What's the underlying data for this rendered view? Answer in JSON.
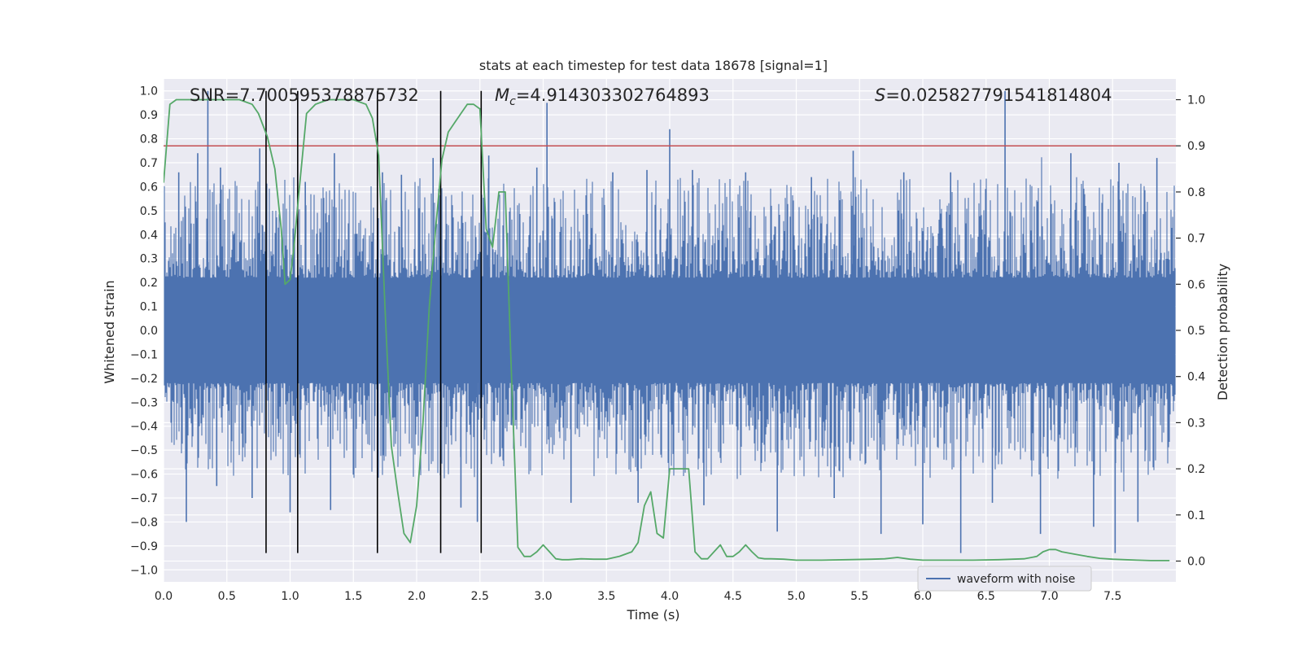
{
  "chart_data": {
    "type": "line",
    "title": "stats at each timestep for test data 18678 [signal=1]",
    "xlabel": "Time (s)",
    "ylabel": "Whitened strain",
    "y2label": "Detection probability",
    "xlim": [
      0.0,
      8.0
    ],
    "ylim": [
      -1.05,
      1.05
    ],
    "y2lim": [
      -0.045,
      1.045
    ],
    "xticks": [
      "0.0",
      "0.5",
      "1.0",
      "1.5",
      "2.0",
      "2.5",
      "3.0",
      "3.5",
      "4.0",
      "4.5",
      "5.0",
      "5.5",
      "6.0",
      "6.5",
      "7.0",
      "7.5"
    ],
    "yticks": [
      "1.0",
      "0.9",
      "0.8",
      "0.7",
      "0.6",
      "0.5",
      "0.4",
      "0.3",
      "0.2",
      "0.1",
      "0.0",
      "-0.1",
      "-0.2",
      "-0.3",
      "-0.4",
      "-0.5",
      "-0.6",
      "-0.7",
      "-0.8",
      "-0.9",
      "-1.0"
    ],
    "y2ticks": [
      "1.0",
      "0.9",
      "0.8",
      "0.7",
      "0.6",
      "0.5",
      "0.4",
      "0.3",
      "0.2",
      "0.1",
      "0.0"
    ],
    "grid": true,
    "legend_position": "lower-right",
    "annotations": {
      "snr": "SNR=7.700595378875732",
      "mc_symbol": "M",
      "mc_sub": "c",
      "mc_value": "=4.914303302764893",
      "s_symbol": "S",
      "s_value": "=0.025827791541814804"
    },
    "series": [
      {
        "name": "waveform with noise",
        "axis": "left",
        "color": "#4c72b0",
        "spikes_up": [
          [
            0.35,
            1.0
          ],
          [
            6.65,
            1.0
          ],
          [
            3.03,
            0.95
          ],
          [
            4.0,
            0.84
          ],
          [
            1.73,
            0.66
          ],
          [
            0.27,
            0.74
          ],
          [
            1.35,
            0.74
          ],
          [
            5.45,
            0.75
          ],
          [
            7.17,
            0.74
          ],
          [
            2.57,
            0.73
          ],
          [
            0.76,
            0.76
          ],
          [
            0.12,
            0.66
          ],
          [
            0.45,
            0.68
          ],
          [
            1.12,
            0.62
          ],
          [
            1.88,
            0.65
          ],
          [
            2.13,
            0.72
          ],
          [
            2.95,
            0.68
          ],
          [
            3.55,
            0.66
          ],
          [
            3.82,
            0.67
          ],
          [
            4.18,
            0.67
          ],
          [
            4.6,
            0.66
          ],
          [
            5.12,
            0.64
          ],
          [
            5.85,
            0.66
          ],
          [
            6.22,
            0.66
          ],
          [
            7.55,
            0.7
          ],
          [
            7.85,
            0.72
          ]
        ],
        "spikes_down": [
          [
            6.3,
            -0.93
          ],
          [
            7.52,
            -0.93
          ],
          [
            7.35,
            -0.82
          ],
          [
            6.93,
            -0.85
          ],
          [
            4.85,
            -0.84
          ],
          [
            6.0,
            -0.81
          ],
          [
            5.67,
            -0.85
          ],
          [
            0.18,
            -0.8
          ],
          [
            2.48,
            -0.8
          ],
          [
            1.32,
            -0.75
          ],
          [
            1.0,
            -0.76
          ],
          [
            0.7,
            -0.7
          ],
          [
            2.35,
            -0.74
          ],
          [
            3.22,
            -0.72
          ],
          [
            4.27,
            -0.73
          ],
          [
            7.7,
            -0.8
          ],
          [
            5.3,
            -0.7
          ],
          [
            6.55,
            -0.72
          ],
          [
            0.42,
            -0.65
          ],
          [
            3.75,
            -0.72
          ]
        ]
      },
      {
        "name": "",
        "axis": "right",
        "color": "#55a868",
        "x": [
          0.0,
          0.05,
          0.1,
          0.2,
          0.3,
          0.4,
          0.5,
          0.6,
          0.7,
          0.75,
          0.82,
          0.88,
          0.93,
          0.96,
          1.0,
          1.03,
          1.07,
          1.13,
          1.2,
          1.3,
          1.4,
          1.5,
          1.6,
          1.65,
          1.7,
          1.75,
          1.8,
          1.85,
          1.9,
          1.95,
          2.0,
          2.05,
          2.1,
          2.15,
          2.2,
          2.25,
          2.3,
          2.35,
          2.4,
          2.45,
          2.5,
          2.55,
          2.6,
          2.65,
          2.7,
          2.75,
          2.8,
          2.85,
          2.9,
          2.95,
          3.0,
          3.05,
          3.1,
          3.15,
          3.2,
          3.3,
          3.4,
          3.5,
          3.6,
          3.7,
          3.75,
          3.8,
          3.85,
          3.9,
          3.95,
          4.0,
          4.05,
          4.1,
          4.15,
          4.2,
          4.25,
          4.3,
          4.35,
          4.4,
          4.45,
          4.5,
          4.55,
          4.6,
          4.65,
          4.7,
          4.75,
          4.8,
          4.9,
          5.0,
          5.1,
          5.2,
          5.4,
          5.6,
          5.7,
          5.8,
          5.9,
          6.0,
          6.2,
          6.4,
          6.6,
          6.8,
          6.9,
          6.95,
          7.0,
          7.05,
          7.1,
          7.2,
          7.3,
          7.4,
          7.5,
          7.6,
          7.7,
          7.8,
          7.9,
          7.95
        ],
        "values": [
          0.82,
          0.99,
          1.0,
          1.0,
          1.0,
          1.0,
          1.0,
          1.0,
          0.99,
          0.97,
          0.92,
          0.85,
          0.72,
          0.6,
          0.61,
          0.68,
          0.8,
          0.97,
          0.99,
          1.0,
          1.0,
          1.0,
          0.99,
          0.96,
          0.88,
          0.55,
          0.25,
          0.15,
          0.06,
          0.04,
          0.12,
          0.3,
          0.55,
          0.72,
          0.87,
          0.93,
          0.95,
          0.97,
          0.99,
          0.99,
          0.98,
          0.72,
          0.68,
          0.8,
          0.8,
          0.4,
          0.03,
          0.01,
          0.01,
          0.02,
          0.035,
          0.02,
          0.005,
          0.003,
          0.003,
          0.005,
          0.004,
          0.004,
          0.01,
          0.02,
          0.04,
          0.12,
          0.15,
          0.06,
          0.05,
          0.2,
          0.2,
          0.2,
          0.2,
          0.02,
          0.005,
          0.005,
          0.02,
          0.035,
          0.01,
          0.01,
          0.02,
          0.035,
          0.02,
          0.007,
          0.005,
          0.005,
          0.004,
          0.002,
          0.002,
          0.002,
          0.003,
          0.004,
          0.005,
          0.008,
          0.004,
          0.002,
          0.002,
          0.002,
          0.003,
          0.005,
          0.01,
          0.02,
          0.025,
          0.025,
          0.02,
          0.015,
          0.01,
          0.006,
          0.004,
          0.003,
          0.002,
          0.001,
          0.001,
          0.001
        ]
      }
    ],
    "horizontal_lines": [
      {
        "axis": "right",
        "value": 0.9,
        "color": "#c44e52"
      }
    ],
    "vertical_lines": {
      "color": "#000000",
      "y_from": -0.93,
      "y_to": 1.0,
      "x": [
        0.81,
        1.06,
        1.69,
        2.19,
        2.51
      ]
    }
  }
}
